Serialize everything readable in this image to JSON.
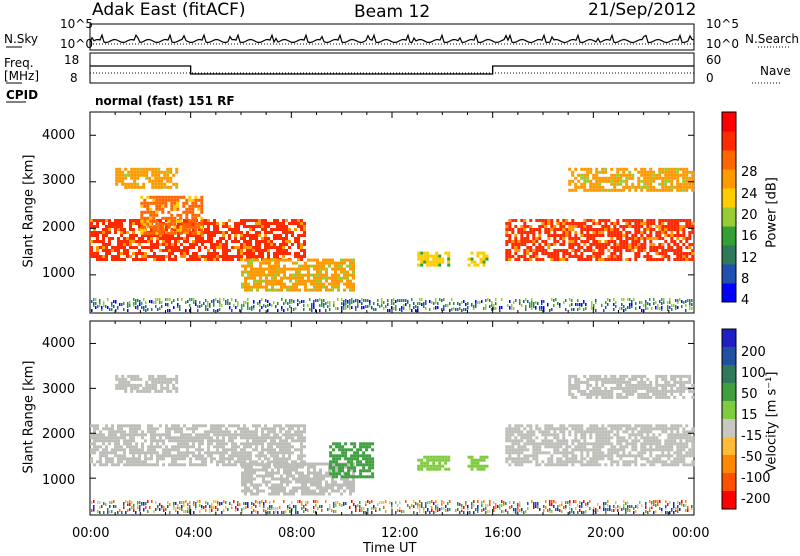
{
  "header": {
    "title": "Adak East (fitACF)",
    "beam": "Beam 12",
    "date": "21/Sep/2012"
  },
  "top_panels": {
    "nsky_label": "N.Sky",
    "nsky_ticks": [
      "10^5",
      "10^0"
    ],
    "nsearch_label": "N.Search",
    "freq_label_1": "Freq.",
    "freq_label_2": "[MHz]",
    "freq_ticks": [
      "18",
      "8"
    ],
    "nave_label": "Nave",
    "nave_ticks": [
      "60",
      "0"
    ],
    "cpid_label": "CPID",
    "cpid_text": "normal (fast) 151 RF"
  },
  "colors": {
    "power_scale": [
      "#0000ff",
      "#1f4fb0",
      "#2e7a5a",
      "#33a033",
      "#99cc33",
      "#ffcc00",
      "#ff9900",
      "#ff6600",
      "#ff2a00",
      "#ff0000"
    ],
    "velocity_scale": [
      "#2020c0",
      "#2050a0",
      "#2e7a5a",
      "#40a040",
      "#80cc40",
      "#c8c8c0",
      "#ffbb33",
      "#ff8800",
      "#ff5000",
      "#ff0000"
    ],
    "ground_scatter": "#bebeb8"
  },
  "chart_data": [
    {
      "type": "heatmap",
      "title": "Adak East (fitACF) Beam 12 21/Sep/2012",
      "xlabel": "Time UT",
      "ylabel": "Slant Range [km]",
      "x_ticks": [
        "00:00",
        "04:00",
        "08:00",
        "12:00",
        "16:00",
        "20:00",
        "00:00"
      ],
      "y_ticks": [
        "1000",
        "2000",
        "3000",
        "4000"
      ],
      "xlim_hours": [
        0,
        24
      ],
      "ylim_km": [
        180,
        4500
      ],
      "colorbar": {
        "label": "Power [dB]",
        "ticks": [
          "4",
          "8",
          "12",
          "16",
          "20",
          "24",
          "28"
        ],
        "range": [
          0,
          32
        ]
      },
      "scatter_regions": [
        {
          "t0": 0.0,
          "t1": 8.5,
          "r0": 1300,
          "r1": 2200,
          "value": 27
        },
        {
          "t0": 2.0,
          "t1": 4.5,
          "r0": 1900,
          "r1": 2700,
          "value": 24
        },
        {
          "t0": 1.0,
          "t1": 3.5,
          "r0": 2900,
          "r1": 3300,
          "value": 22
        },
        {
          "t0": 6.0,
          "t1": 10.5,
          "r0": 650,
          "r1": 1350,
          "value": 20
        },
        {
          "t0": 13.0,
          "t1": 14.3,
          "r0": 1200,
          "r1": 1500,
          "value": 17
        },
        {
          "t0": 15.0,
          "t1": 15.8,
          "r0": 1200,
          "r1": 1500,
          "value": 16
        },
        {
          "t0": 16.5,
          "t1": 24.0,
          "r0": 1300,
          "r1": 2200,
          "value": 26
        },
        {
          "t0": 19.0,
          "t1": 24.0,
          "r0": 2800,
          "r1": 3300,
          "value": 22
        }
      ]
    },
    {
      "type": "heatmap",
      "xlabel": "Time UT",
      "ylabel": "Slant Range [km]",
      "x_ticks": [
        "00:00",
        "04:00",
        "08:00",
        "12:00",
        "16:00",
        "20:00",
        "00:00"
      ],
      "y_ticks": [
        "1000",
        "2000",
        "3000",
        "4000"
      ],
      "xlim_hours": [
        0,
        24
      ],
      "ylim_km": [
        180,
        4500
      ],
      "colorbar": {
        "label": "Velocity [m s⁻¹]",
        "ticks": [
          "200",
          "100",
          "50",
          "15",
          "-15",
          "-50",
          "-100",
          "-200"
        ],
        "range": [
          -250,
          250
        ]
      },
      "scatter_regions": [
        {
          "t0": 0.0,
          "t1": 8.5,
          "r0": 1300,
          "r1": 2200,
          "value": 0
        },
        {
          "t0": 1.0,
          "t1": 3.5,
          "r0": 2900,
          "r1": 3300,
          "value": 0
        },
        {
          "t0": 6.0,
          "t1": 10.5,
          "r0": 650,
          "r1": 1350,
          "value": 0
        },
        {
          "t0": 9.5,
          "t1": 11.2,
          "r0": 1000,
          "r1": 1800,
          "value": 60
        },
        {
          "t0": 13.0,
          "t1": 14.3,
          "r0": 1200,
          "r1": 1500,
          "value": 45
        },
        {
          "t0": 15.0,
          "t1": 15.8,
          "r0": 1200,
          "r1": 1500,
          "value": 45
        },
        {
          "t0": 16.5,
          "t1": 24.0,
          "r0": 1300,
          "r1": 2200,
          "value": 0
        },
        {
          "t0": 19.0,
          "t1": 24.0,
          "r0": 2800,
          "r1": 3300,
          "value": 0
        }
      ]
    }
  ]
}
